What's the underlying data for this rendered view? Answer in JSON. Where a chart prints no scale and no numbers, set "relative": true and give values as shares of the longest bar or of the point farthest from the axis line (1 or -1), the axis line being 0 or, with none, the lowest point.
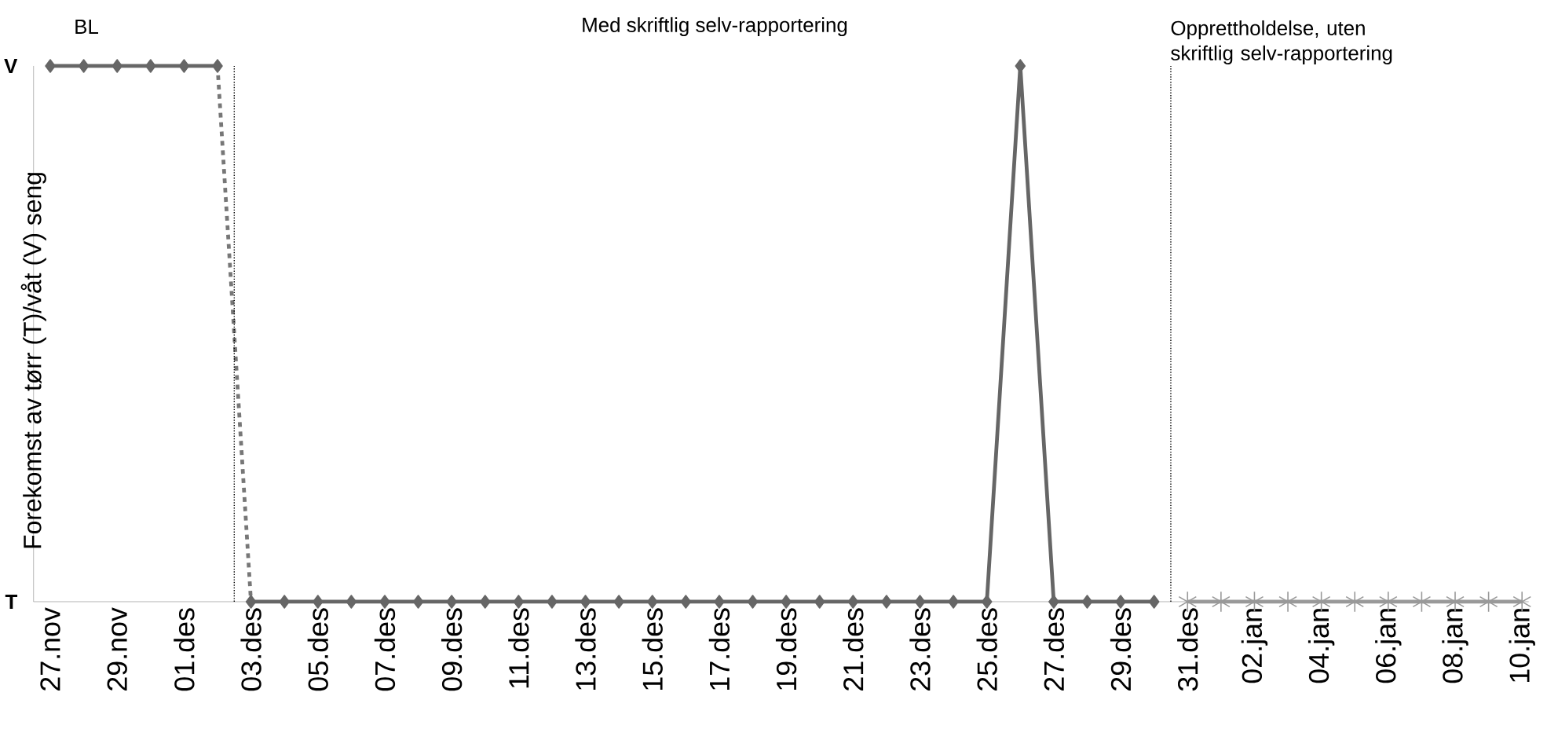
{
  "chart_data": {
    "type": "line",
    "relative": true,
    "ylabel": "Forekomst av tørr (T)/våt (V) seng",
    "categories": [
      "27.nov",
      null,
      "29.nov",
      null,
      "01.des",
      null,
      "03.des",
      null,
      "05.des",
      null,
      "07.des",
      null,
      "09.des",
      null,
      "11.des",
      null,
      "13.des",
      null,
      "15.des",
      null,
      "17.des",
      null,
      "19.des",
      null,
      "21.des",
      null,
      "23.des",
      null,
      "25.des",
      null,
      "27.des",
      null,
      "29.des",
      null,
      "31.des",
      null,
      "02.jan",
      null,
      "04.jan",
      null,
      "06.jan",
      null,
      "08.jan",
      null,
      "10.jan"
    ],
    "series": [
      {
        "color": "#666666",
        "marker": "diamond",
        "line_style": "solid",
        "values": [
          1,
          1,
          1,
          1,
          1,
          1,
          null,
          null,
          null,
          null,
          null,
          null,
          null,
          null,
          null,
          null,
          null,
          null,
          null,
          null,
          null,
          null,
          null,
          null,
          null,
          null,
          null,
          null,
          null,
          null,
          null,
          null,
          null,
          null,
          null,
          null,
          null,
          null,
          null,
          null,
          null,
          null,
          null,
          null,
          null
        ]
      },
      {
        "color": "#777777",
        "marker": "none",
        "line_style": "dashed",
        "values": [
          null,
          null,
          null,
          null,
          null,
          1,
          0,
          null,
          null,
          null,
          null,
          null,
          null,
          null,
          null,
          null,
          null,
          null,
          null,
          null,
          null,
          null,
          null,
          null,
          null,
          null,
          null,
          null,
          null,
          null,
          null,
          null,
          null,
          null,
          null,
          null,
          null,
          null,
          null,
          null,
          null,
          null,
          null,
          null,
          null
        ]
      },
      {
        "color": "#666666",
        "marker": "diamond",
        "line_style": "solid",
        "values": [
          null,
          null,
          null,
          null,
          null,
          null,
          0,
          0,
          0,
          0,
          0,
          0,
          0,
          0,
          0,
          0,
          0,
          0,
          0,
          0,
          0,
          0,
          0,
          0,
          0,
          0,
          0,
          0,
          0,
          1,
          0,
          0,
          0,
          0,
          null,
          null,
          null,
          null,
          null,
          null,
          null,
          null,
          null,
          null,
          null
        ]
      },
      {
        "color": "#999999",
        "marker": "cross",
        "line_style": "solid",
        "values": [
          null,
          null,
          null,
          null,
          null,
          null,
          null,
          null,
          null,
          null,
          null,
          null,
          null,
          null,
          null,
          null,
          null,
          null,
          null,
          null,
          null,
          null,
          null,
          null,
          null,
          null,
          null,
          null,
          null,
          null,
          null,
          null,
          null,
          null,
          0,
          0,
          0,
          0,
          0,
          0,
          0,
          0,
          0,
          0,
          0
        ]
      }
    ],
    "annotations": [
      "BL",
      "Med skriftlig selv-rapportering",
      "Opprettholdelse, uten skriftlig selv-rapportering",
      "T",
      "V"
    ]
  }
}
